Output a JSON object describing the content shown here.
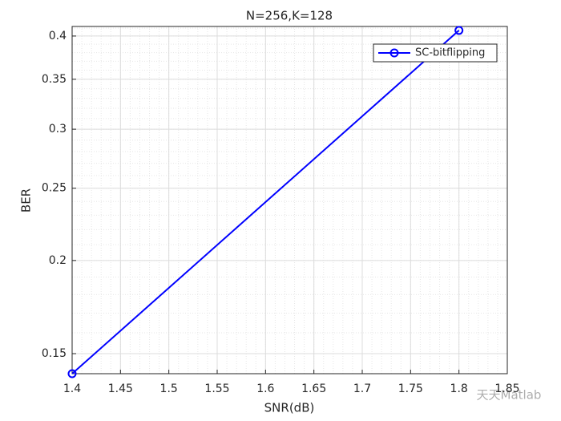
{
  "chart_data": {
    "type": "line",
    "title": "N=256,K=128",
    "x_label": "SNR(dB)",
    "y_label": "BER",
    "x": [
      1.4,
      1.8
    ],
    "series": [
      {
        "name": "SC-bitflipping",
        "color": "#0000ff",
        "values": [
          0.141,
          0.407
        ]
      }
    ],
    "xlim": [
      1.4,
      1.85
    ],
    "xticks": [
      1.4,
      1.45,
      1.5,
      1.55,
      1.6,
      1.65,
      1.7,
      1.75,
      1.8,
      1.85
    ],
    "ylim": [
      0.141,
      0.412
    ],
    "yticks": [
      0.15,
      0.2,
      0.25,
      0.3,
      0.35,
      0.4
    ],
    "y_log": true,
    "grid": true,
    "minor_grid": true,
    "legend": "northeast",
    "watermark": "天天Matlab"
  }
}
